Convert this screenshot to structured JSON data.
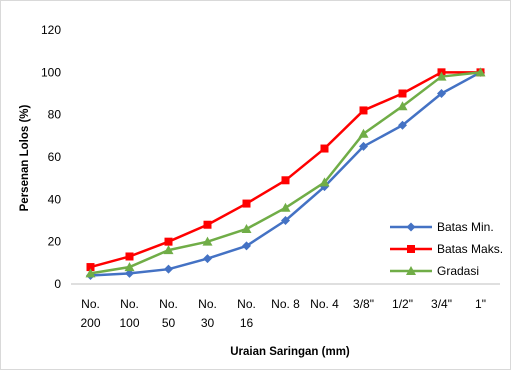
{
  "chart_data": {
    "type": "line",
    "xlabel": "Uraian Saringan (mm)",
    "ylabel": "Persenan Lolos (%)",
    "ylim": [
      0,
      120
    ],
    "yticks": [
      0,
      20,
      40,
      60,
      80,
      100,
      120
    ],
    "categories": [
      [
        "No.",
        "200"
      ],
      [
        "No.",
        "100"
      ],
      [
        "No.",
        "50"
      ],
      [
        "No.",
        "30"
      ],
      [
        "No.",
        "16"
      ],
      [
        "No. 8"
      ],
      [
        "No. 4"
      ],
      [
        "3/8\""
      ],
      [
        "1/2\""
      ],
      [
        "3/4\""
      ],
      [
        "1\""
      ]
    ],
    "grid": false,
    "legend_position": "right",
    "series": [
      {
        "name": "Batas Min.",
        "color": "#4472C4",
        "marker": "diamond",
        "values": [
          4,
          5,
          7,
          12,
          18,
          30,
          46,
          65,
          75,
          90,
          100
        ]
      },
      {
        "name": "Batas Maks.",
        "color": "#FF0000",
        "marker": "square",
        "values": [
          8,
          13,
          20,
          28,
          38,
          49,
          64,
          82,
          90,
          100,
          100
        ]
      },
      {
        "name": "Gradasi",
        "color": "#70AD47",
        "marker": "triangle",
        "values": [
          5,
          8,
          16,
          20,
          26,
          36,
          48,
          71,
          84,
          98,
          100
        ]
      }
    ]
  }
}
